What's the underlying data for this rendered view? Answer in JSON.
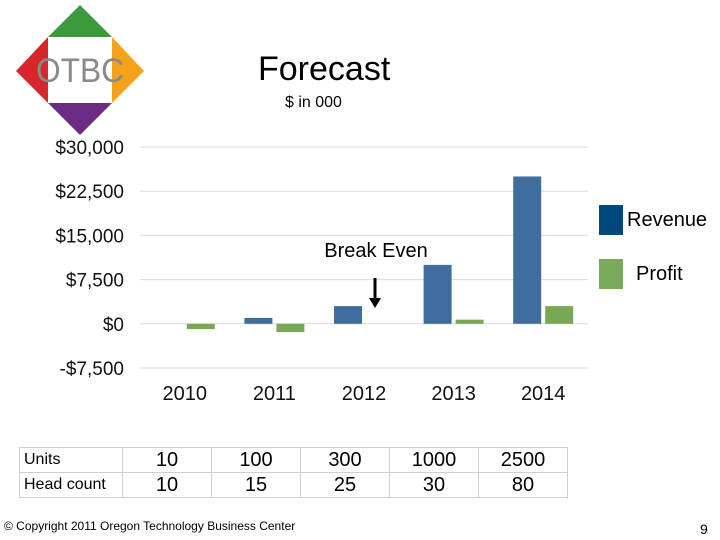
{
  "slide": {
    "title": "Forecast",
    "subtitle": "$ in 000",
    "logo_text": "OTBC",
    "copyright": "© Copyright 2011 Oregon Technology Business Center",
    "page_number": "9"
  },
  "colors": {
    "revenue": "#3f6d9e",
    "profit": "#78a854",
    "revenue_legend": "#00467f",
    "profit_legend": "#7bab5a",
    "logo_top": "#3c9a3c",
    "logo_right": "#f4a21c",
    "logo_bottom": "#6b2c86",
    "logo_left": "#d7262c",
    "logo_text": "#8a8a8a"
  },
  "chart_data": {
    "type": "bar",
    "title": "Forecast",
    "subtitle": "$ in 000",
    "categories": [
      "2010",
      "2011",
      "2012",
      "2013",
      "2014"
    ],
    "series": [
      {
        "name": "Revenue",
        "values": [
          0,
          1000,
          3000,
          10000,
          25000
        ]
      },
      {
        "name": "Profit",
        "values": [
          -900,
          -1400,
          0,
          700,
          3000
        ]
      }
    ],
    "ylim": [
      -7500,
      30000
    ],
    "yticks": [
      30000,
      22500,
      15000,
      7500,
      0,
      -7500
    ],
    "ytick_labels": [
      "$30,000",
      "$22,500",
      "$15,000",
      "$7,500",
      "$0",
      "-$7,500"
    ],
    "grid": true,
    "legend": "right",
    "annotation": {
      "text": "Break Even",
      "category": "2012"
    }
  },
  "table": {
    "rows": [
      {
        "label": "Units",
        "values": [
          "10",
          "100",
          "300",
          "1000",
          "2500"
        ]
      },
      {
        "label": "Head count",
        "values": [
          "10",
          "15",
          "25",
          "30",
          "80"
        ]
      }
    ]
  }
}
